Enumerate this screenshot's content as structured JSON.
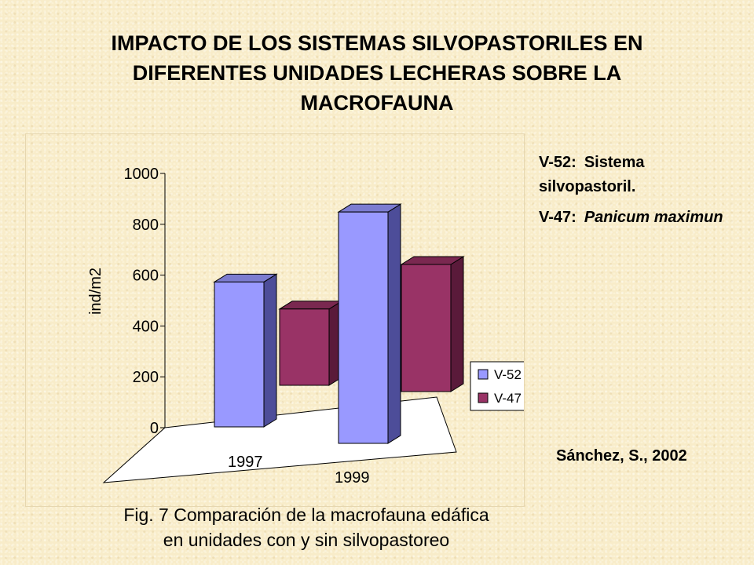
{
  "slide": {
    "title_lines": [
      "IMPACTO DE LOS SISTEMAS SILVOPASTORILES EN",
      "DIFERENTES UNIDADES LECHERAS SOBRE LA",
      "MACROFAUNA"
    ],
    "notes": [
      {
        "code": "V-52:",
        "text": "Sistema silvopastoril.",
        "italic": false
      },
      {
        "code": "V-47:",
        "text": "Panicum maximun",
        "italic": true
      }
    ],
    "source": "Sánchez, S., 2002",
    "caption_lines": [
      "Fig. 7 Comparación de la macrofauna edáfica",
      "en unidades con y sin silvopastoreo"
    ]
  },
  "colors": {
    "v52_front": "#9999ff",
    "v52_side": "#4d4d99",
    "v52_top": "#7c7cd0",
    "v47_front": "#993366",
    "v47_side": "#5a1a3a",
    "v47_top": "#7a2850",
    "floor": "#ffffff"
  },
  "chart_data": {
    "type": "bar",
    "three_d": true,
    "categories": [
      "1997",
      "1999"
    ],
    "series": [
      {
        "name": "V-52",
        "values": [
          570,
          910
        ]
      },
      {
        "name": "V-47",
        "values": [
          300,
          500
        ]
      }
    ],
    "ylabel": "ind/m2",
    "yticks": [
      "0",
      "200",
      "400",
      "600",
      "800",
      "1000"
    ],
    "ylim": [
      0,
      1000
    ],
    "legend_position": "right"
  }
}
